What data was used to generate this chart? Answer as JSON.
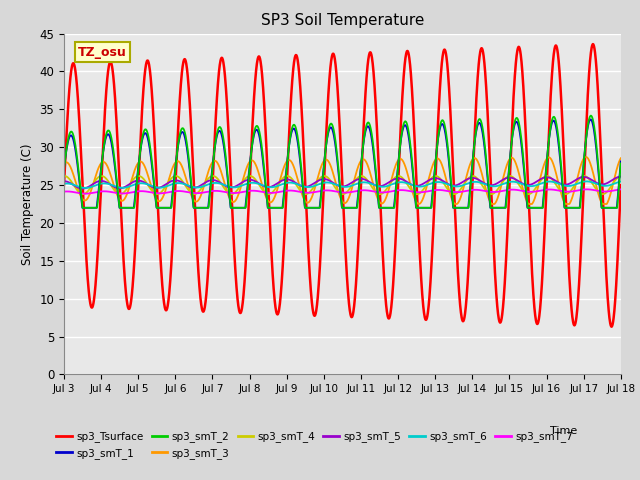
{
  "title": "SP3 Soil Temperature",
  "xlabel": "Time",
  "ylabel": "Soil Temperature (C)",
  "ylim": [
    0,
    45
  ],
  "yticks": [
    0,
    5,
    10,
    15,
    20,
    25,
    30,
    35,
    40,
    45
  ],
  "annotation_text": "TZ_osu",
  "annotation_color": "#cc0000",
  "annotation_bg": "#ffffcc",
  "annotation_border": "#aaaa00",
  "series_colors": {
    "sp3_Tsurface": "#ff0000",
    "sp3_smT_1": "#0000cc",
    "sp3_smT_2": "#00cc00",
    "sp3_smT_3": "#ff9900",
    "sp3_smT_4": "#cccc00",
    "sp3_smT_5": "#9900cc",
    "sp3_smT_6": "#00cccc",
    "sp3_smT_7": "#ff00ff"
  },
  "bg_color": "#e8e8e8",
  "grid_color": "#ffffff",
  "n_days": 15,
  "start_day": 3,
  "points_per_day": 144
}
